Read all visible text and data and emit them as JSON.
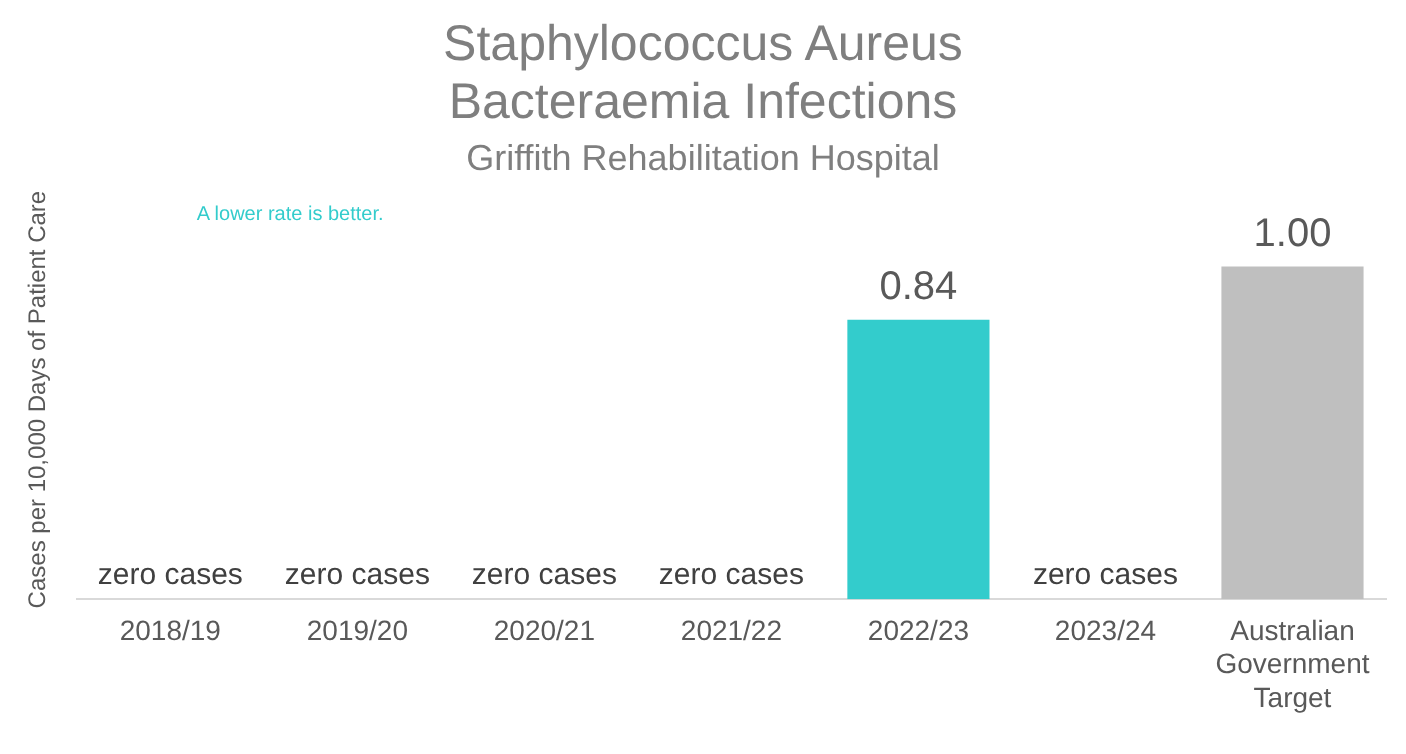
{
  "chart_data": {
    "type": "bar",
    "title": "Staphylococcus Aureus Bacteraemia Infections",
    "subtitle": "Griffith Rehabilitation Hospital",
    "ylabel": "Cases per 10,000 Days of Patient Care",
    "categories": [
      "2018/19",
      "2019/20",
      "2020/21",
      "2021/22",
      "2022/23",
      "2023/24",
      "Australian Government Target"
    ],
    "values": [
      0,
      0,
      0,
      0,
      0.84,
      0,
      1.0
    ],
    "colors": [
      "#33cccc",
      "#33cccc",
      "#33cccc",
      "#33cccc",
      "#33cccc",
      "#33cccc",
      "#bfbfbf"
    ],
    "value_labels": [
      "zero cases",
      "zero cases",
      "zero cases",
      "zero cases",
      "0.84",
      "zero cases",
      "1.00"
    ],
    "annotations": [
      "A lower rate is better."
    ],
    "tick_labels": "x",
    "grid": false,
    "legend": false
  }
}
